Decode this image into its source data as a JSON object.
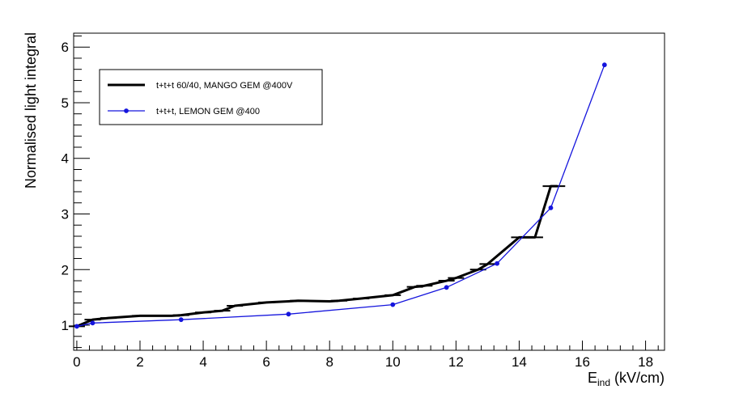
{
  "chart_data": {
    "type": "line",
    "title": "",
    "xlabel": {
      "main": "E",
      "sub": "ind",
      "unit": " (kV/cm)"
    },
    "ylabel": "Normalised light integral",
    "xlim": [
      -0.1,
      18.6
    ],
    "ylim": [
      0.55,
      6.25
    ],
    "x_ticks": [
      0,
      2,
      4,
      6,
      8,
      10,
      12,
      14,
      16,
      18
    ],
    "y_ticks": [
      1,
      2,
      3,
      4,
      5,
      6
    ],
    "legend_position": "top-left",
    "grid": false,
    "series": [
      {
        "name": "t+t+t 60/40, MANGO GEM @400V",
        "color": "#000000",
        "line_width": 3,
        "markers": "horizontal error bars",
        "x": [
          0,
          0.5,
          1,
          2,
          3,
          3.3,
          4,
          4.6,
          5,
          6,
          6.7,
          7,
          8,
          8.3,
          9,
          10,
          10.7,
          11,
          11.7,
          12,
          12.7,
          13,
          14,
          14.5,
          15,
          15.2
        ],
        "y": [
          0.98,
          1.1,
          1.13,
          1.17,
          1.17,
          1.18,
          1.23,
          1.26,
          1.35,
          1.41,
          1.43,
          1.44,
          1.43,
          1.44,
          1.48,
          1.54,
          1.69,
          1.71,
          1.8,
          1.85,
          2.0,
          2.1,
          2.58,
          2.58,
          3.5,
          3.5
        ]
      },
      {
        "name": "t+t+t, LEMON GEM @400",
        "color": "#1515dd",
        "line_width": 1.3,
        "markers": "circle",
        "x": [
          0,
          0.5,
          3.3,
          6.7,
          10,
          11.7,
          13.3,
          15,
          16.7
        ],
        "y": [
          0.98,
          1.04,
          1.1,
          1.2,
          1.37,
          1.68,
          2.11,
          3.11,
          5.68
        ]
      }
    ]
  }
}
